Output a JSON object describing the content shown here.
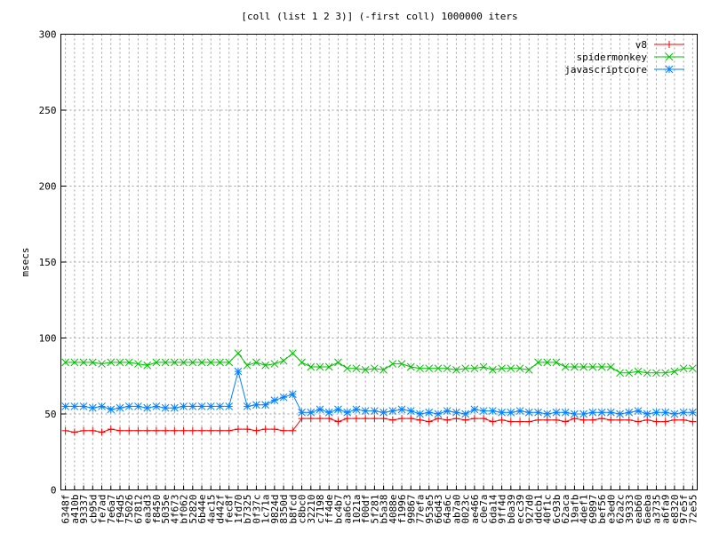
{
  "chart_data": {
    "type": "line",
    "title": "[coll (list 1 2 3)] (-first coll) 1000000 iters",
    "xlabel": "",
    "ylabel": "msecs",
    "ylim": [
      0,
      300
    ],
    "yticks": [
      0,
      50,
      100,
      150,
      200,
      250,
      300
    ],
    "grid": true,
    "legend_position": "top-right",
    "categories": [
      "6348f",
      "a410b",
      "93337",
      "cb95d",
      "fe7ad",
      "7e6a7",
      "f94d5",
      "75026",
      "67812",
      "ea3d3",
      "f8450",
      "5035e",
      "4f673",
      "bf062",
      "52820",
      "6b44e",
      "4ac15",
      "d442f",
      "fec8f",
      "1fd70",
      "b7325",
      "0f37c",
      "1c71a",
      "9824d",
      "8350d",
      "b8fcd",
      "c8bc0",
      "32210",
      "c7198",
      "ff4de",
      "bc4b7",
      "aa6c3",
      "1021a",
      "f00df",
      "5f281",
      "b5a38",
      "4088e",
      "f1996",
      "99867",
      "77efa",
      "953e5",
      "66d43",
      "64a6c",
      "ab7a0",
      "0023c",
      "ae466",
      "c0e7a",
      "6da14",
      "9ff4d",
      "b0a39",
      "ecc39",
      "927d0",
      "ddcb1",
      "40f1c",
      "6c93b",
      "62aca",
      "19afb",
      "4def1",
      "69897",
      "bef56",
      "e3ed0",
      "62a2c",
      "39333",
      "eab60",
      "6aeba",
      "a3735",
      "a6fa9",
      "e8320",
      "97e5f",
      "72e55"
    ],
    "series": [
      {
        "name": "v8",
        "color": "#ff0000",
        "marker": "plus",
        "values": [
          39,
          38,
          39,
          39,
          38,
          40,
          39,
          39,
          39,
          39,
          39,
          39,
          39,
          39,
          39,
          39,
          39,
          39,
          39,
          40,
          40,
          39,
          40,
          40,
          39,
          39,
          47,
          47,
          47,
          47,
          45,
          47,
          47,
          47,
          47,
          47,
          46,
          47,
          47,
          46,
          45,
          47,
          46,
          47,
          46,
          47,
          47,
          45,
          46,
          45,
          45,
          45,
          46,
          46,
          46,
          45,
          47,
          46,
          46,
          47,
          46,
          46,
          46,
          45,
          46,
          45,
          45,
          46,
          46,
          45
        ]
      },
      {
        "name": "spidermonkey",
        "color": "#00c000",
        "marker": "cross",
        "values": [
          84,
          84,
          84,
          84,
          83,
          84,
          84,
          84,
          83,
          82,
          84,
          84,
          84,
          84,
          84,
          84,
          84,
          84,
          84,
          90,
          82,
          84,
          82,
          83,
          85,
          90,
          84,
          81,
          81,
          81,
          84,
          80,
          80,
          79,
          80,
          79,
          83,
          83,
          81,
          80,
          80,
          80,
          80,
          79,
          80,
          80,
          81,
          79,
          80,
          80,
          80,
          79,
          84,
          84,
          84,
          81,
          81,
          81,
          81,
          81,
          81,
          77,
          77,
          78,
          77,
          77,
          77,
          78,
          80,
          80
        ]
      },
      {
        "name": "javascriptcore",
        "color": "#0080ff",
        "marker": "star",
        "values": [
          55,
          55,
          55,
          54,
          55,
          53,
          54,
          55,
          55,
          54,
          55,
          54,
          54,
          55,
          55,
          55,
          55,
          55,
          55,
          78,
          55,
          56,
          56,
          59,
          61,
          63,
          51,
          51,
          53,
          51,
          53,
          51,
          53,
          52,
          52,
          51,
          52,
          53,
          52,
          50,
          51,
          50,
          52,
          51,
          50,
          53,
          52,
          52,
          51,
          51,
          52,
          51,
          51,
          50,
          51,
          51,
          50,
          50,
          51,
          51,
          51,
          50,
          51,
          52,
          50,
          51,
          51,
          50,
          51,
          51
        ]
      }
    ]
  }
}
